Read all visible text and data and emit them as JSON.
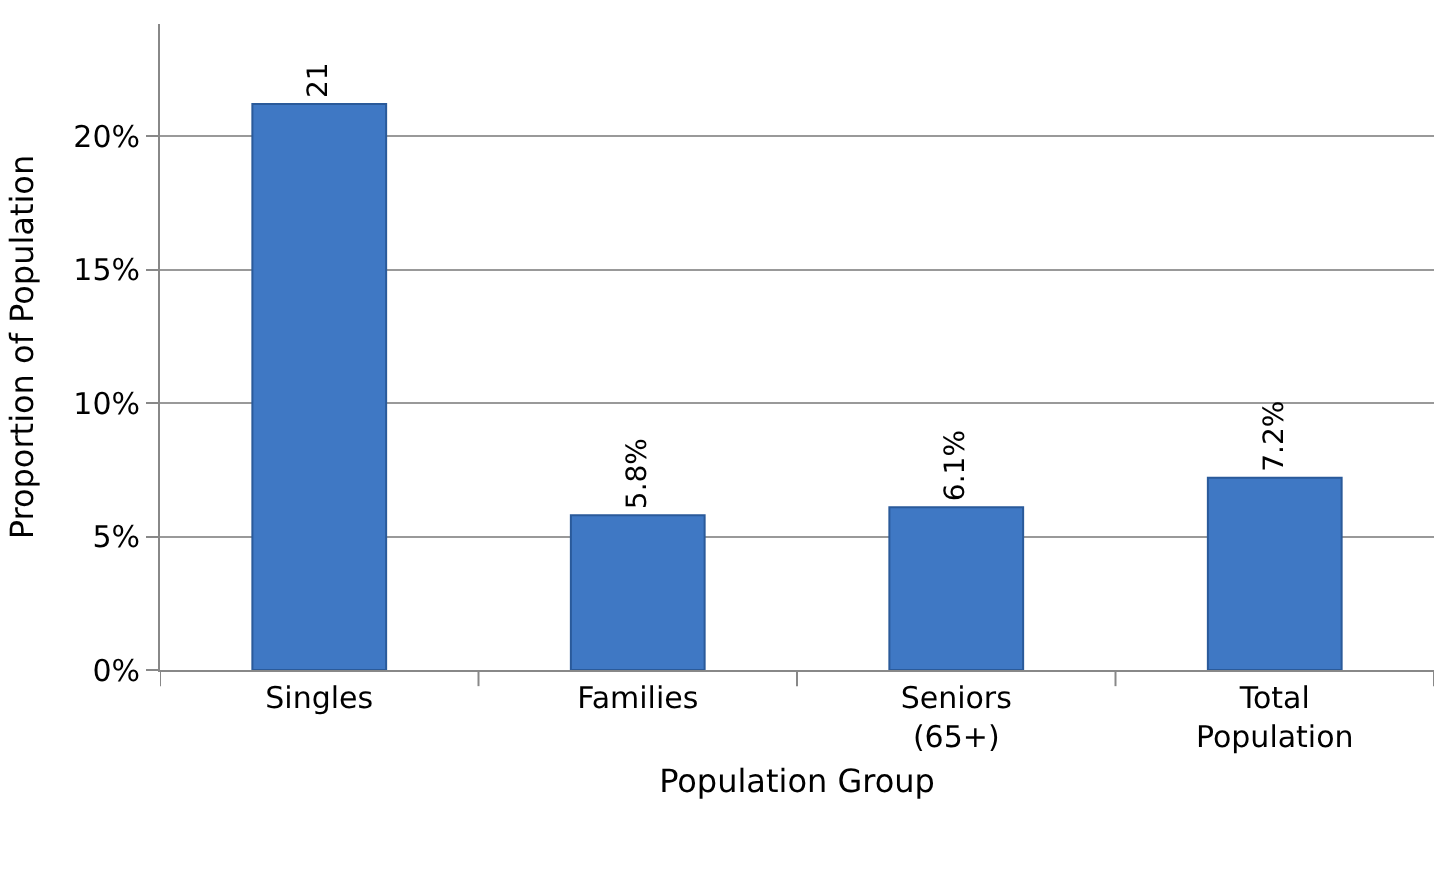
{
  "chart_data": {
    "type": "bar",
    "xlabel": "Population Group",
    "ylabel": "Proportion of Population",
    "categories": [
      "Singles",
      "Families",
      "Seniors\n(65+)",
      "Total\nPopulation"
    ],
    "values": [
      21.2,
      5.8,
      6.1,
      7.2
    ],
    "value_labels": [
      "21",
      "5.8%",
      "6.1%",
      "7.2%"
    ],
    "color": "#3f78c4",
    "ylim": [
      0,
      24.2
    ],
    "yticks": [
      {
        "value": 0,
        "label": "0%"
      },
      {
        "value": 5,
        "label": "5%"
      },
      {
        "value": 10,
        "label": "10%"
      },
      {
        "value": 15,
        "label": "15%"
      },
      {
        "value": 20,
        "label": "20%"
      }
    ],
    "grid": "y",
    "legend": false
  }
}
